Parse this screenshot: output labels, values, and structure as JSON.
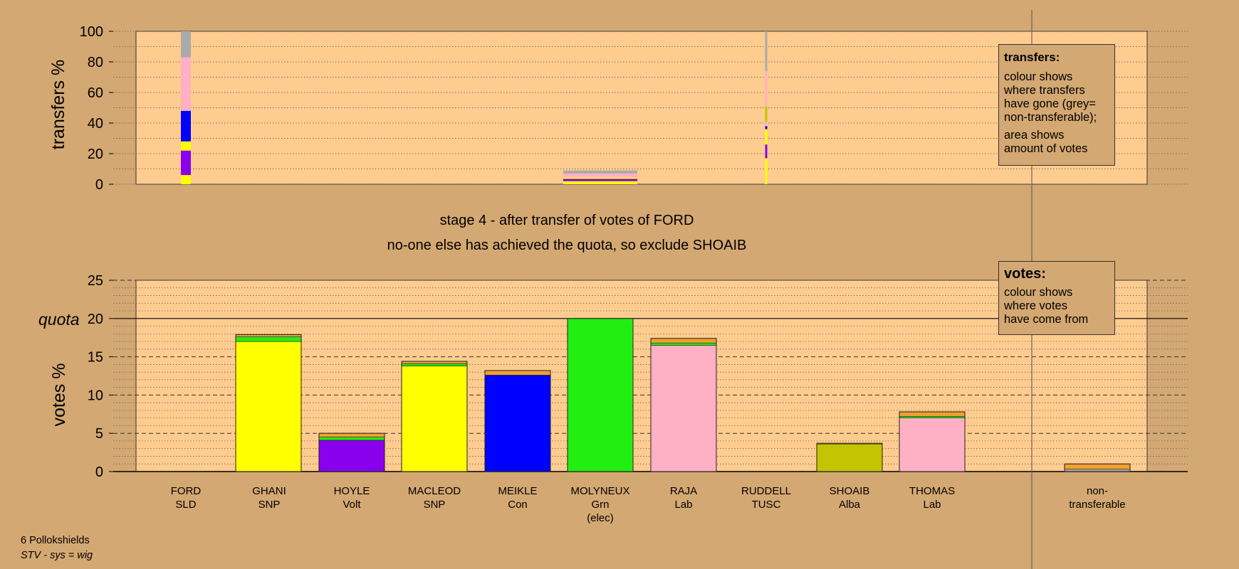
{
  "stage_text": "stage 4 - after transfer of votes of FORD",
  "stage_note": "no-one else has achieved the quota, so exclude SHOAIB",
  "footer": {
    "line1": "6 Pollokshields",
    "line2": "STV - sys = wig"
  },
  "transfers_legend": {
    "title": "transfers:",
    "lines1": [
      "colour shows",
      "where transfers",
      "have gone (grey=",
      "non-transferable);"
    ],
    "lines2": [
      "area shows",
      "amount of votes"
    ]
  },
  "votes_legend": {
    "title": "votes:",
    "lines": [
      "colour shows",
      "where votes",
      "have come from"
    ]
  },
  "candidates": [
    {
      "name": "FORD",
      "party": "SLD",
      "extra": ""
    },
    {
      "name": "GHANI",
      "party": "SNP",
      "extra": ""
    },
    {
      "name": "HOYLE",
      "party": "Volt",
      "extra": ""
    },
    {
      "name": "MACLEOD",
      "party": "SNP",
      "extra": ""
    },
    {
      "name": "MEIKLE",
      "party": "Con",
      "extra": ""
    },
    {
      "name": "MOLYNEUX",
      "party": "Grn",
      "extra": "(elec)"
    },
    {
      "name": "RAJA",
      "party": "Lab",
      "extra": ""
    },
    {
      "name": "RUDDELL",
      "party": "TUSC",
      "extra": ""
    },
    {
      "name": "SHOAIB",
      "party": "Alba",
      "extra": ""
    },
    {
      "name": "THOMAS",
      "party": "Lab",
      "extra": ""
    },
    {
      "name": "non-",
      "party": "transferable",
      "extra": ""
    }
  ],
  "colors": {
    "background": "#d4a872",
    "panel": "#ffcc8f",
    "yellow": "#ffff00",
    "purple": "#8800ee",
    "blue": "#0000ff",
    "green": "#22ee11",
    "pink": "#ffb0c4",
    "olive": "#c4c400",
    "grey": "#aaaaaa",
    "orange": "#f0a030"
  },
  "chart_data": [
    {
      "type": "bar",
      "title": "",
      "ylabel": "transfers %",
      "ylim": [
        0,
        100
      ],
      "yticks": [
        0,
        20,
        40,
        60,
        80,
        100
      ],
      "note": "transfer columns (stacked, % of transferred votes)",
      "series": [
        {
          "category": "FORD",
          "segments": [
            {
              "color": "yellow",
              "value": 6
            },
            {
              "color": "purple",
              "value": 16
            },
            {
              "color": "yellow",
              "value": 6
            },
            {
              "color": "blue",
              "value": 20
            },
            {
              "color": "pink",
              "value": 35
            },
            {
              "color": "grey",
              "value": 17
            }
          ]
        },
        {
          "category": "MOLYNEUX",
          "segments": [
            {
              "color": "yellow",
              "value": 2
            },
            {
              "color": "purple",
              "value": 1.5
            },
            {
              "color": "yellow",
              "value": 1
            },
            {
              "color": "pink",
              "value": 2.5
            },
            {
              "color": "grey",
              "value": 2
            }
          ]
        },
        {
          "category": "RUDDELL",
          "segments": [
            {
              "color": "yellow",
              "value": 17
            },
            {
              "color": "purple",
              "value": 9
            },
            {
              "color": "yellow",
              "value": 10
            },
            {
              "color": "blue",
              "value": 2
            },
            {
              "color": "pink",
              "value": 3
            },
            {
              "color": "olive",
              "value": 10
            },
            {
              "color": "pink",
              "value": 23
            },
            {
              "color": "grey",
              "value": 26
            }
          ]
        }
      ]
    },
    {
      "type": "bar",
      "title": "",
      "ylabel": "votes %",
      "ylim": [
        0,
        25
      ],
      "yticks": [
        0,
        5,
        10,
        15,
        20,
        25
      ],
      "quota": 20,
      "quota_label": "quota",
      "categories": [
        "FORD",
        "GHANI",
        "HOYLE",
        "MACLEOD",
        "MEIKLE",
        "MOLYNEUX",
        "RAJA",
        "RUDDELL",
        "SHOAIB",
        "THOMAS",
        "non-transferable"
      ],
      "series": [
        {
          "category": "FORD",
          "segments": []
        },
        {
          "category": "GHANI",
          "segments": [
            {
              "color": "yellow",
              "value": 17.0
            },
            {
              "color": "green",
              "value": 0.6
            },
            {
              "color": "orange",
              "value": 0.3
            }
          ]
        },
        {
          "category": "HOYLE",
          "segments": [
            {
              "color": "purple",
              "value": 4.1
            },
            {
              "color": "green",
              "value": 0.4
            },
            {
              "color": "orange",
              "value": 0.5
            }
          ]
        },
        {
          "category": "MACLEOD",
          "segments": [
            {
              "color": "yellow",
              "value": 13.8
            },
            {
              "color": "green",
              "value": 0.3
            },
            {
              "color": "orange",
              "value": 0.3
            }
          ]
        },
        {
          "category": "MEIKLE",
          "segments": [
            {
              "color": "blue",
              "value": 12.6
            },
            {
              "color": "orange",
              "value": 0.6
            }
          ]
        },
        {
          "category": "MOLYNEUX",
          "segments": [
            {
              "color": "green",
              "value": 20.0
            }
          ]
        },
        {
          "category": "RAJA",
          "segments": [
            {
              "color": "pink",
              "value": 16.5
            },
            {
              "color": "green",
              "value": 0.3
            },
            {
              "color": "orange",
              "value": 0.6
            }
          ]
        },
        {
          "category": "RUDDELL",
          "segments": []
        },
        {
          "category": "SHOAIB",
          "segments": [
            {
              "color": "olive",
              "value": 3.6
            },
            {
              "color": "orange",
              "value": 0.1
            }
          ]
        },
        {
          "category": "THOMAS",
          "segments": [
            {
              "color": "pink",
              "value": 7.0
            },
            {
              "color": "green",
              "value": 0.2
            },
            {
              "color": "orange",
              "value": 0.6
            }
          ]
        },
        {
          "category": "non-transferable",
          "segments": [
            {
              "color": "grey",
              "value": 0.3
            },
            {
              "color": "orange",
              "value": 0.7
            }
          ]
        }
      ]
    }
  ]
}
